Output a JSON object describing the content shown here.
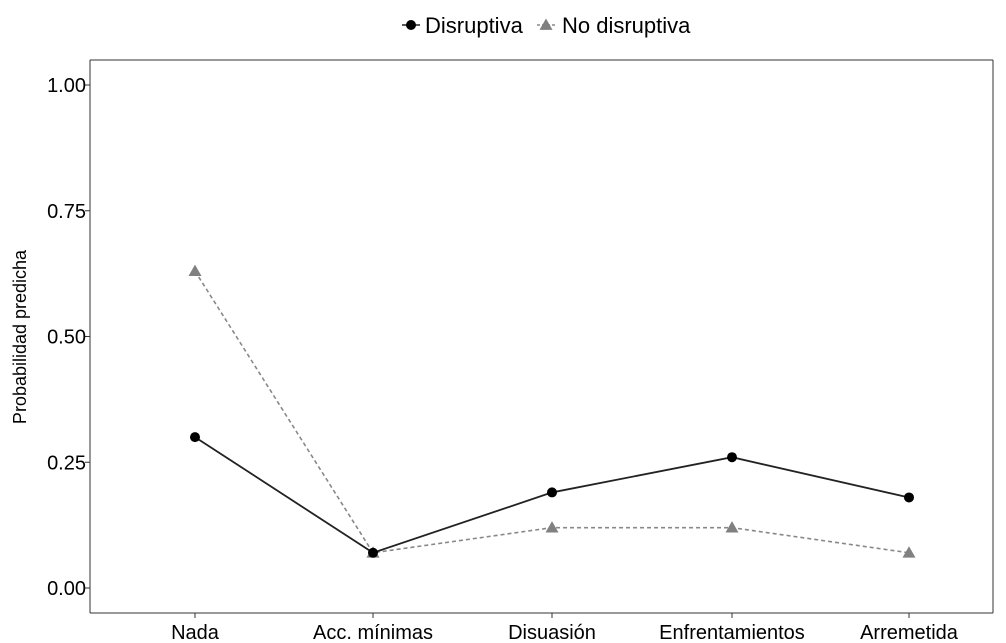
{
  "chart_data": {
    "type": "line",
    "title": "",
    "xlabel": "",
    "ylabel": "Probabilidad predicha",
    "categories": [
      "Nada",
      "Acc. mínimas",
      "Disuasión",
      "Enfrentamientos",
      "Arremetida"
    ],
    "ylim": [
      0,
      1
    ],
    "yticks": [
      "0.00",
      "0.25",
      "0.50",
      "0.75",
      "1.00"
    ],
    "ytick_values": [
      0,
      0.25,
      0.5,
      0.75,
      1
    ],
    "grid": false,
    "legend_position": "top",
    "series": [
      {
        "name": "Disruptiva",
        "values": [
          0.3,
          0.07,
          0.19,
          0.26,
          0.18
        ],
        "color": "#000000",
        "marker": "circle",
        "dash": "solid"
      },
      {
        "name": "No disruptiva",
        "values": [
          0.63,
          0.07,
          0.12,
          0.12,
          0.07
        ],
        "color": "#808080",
        "marker": "triangle",
        "dash": "dashed"
      }
    ]
  }
}
